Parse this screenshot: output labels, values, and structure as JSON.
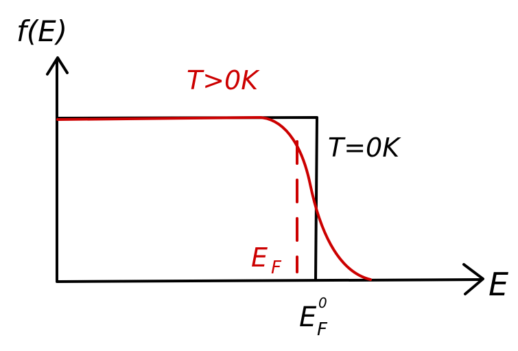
{
  "labels": {
    "y_axis": "f(E)",
    "x_axis": "E",
    "hot_curve": "T>0K",
    "zero_curve": "T=0K",
    "fermi_hot_main": "E",
    "fermi_hot_sub": "F",
    "fermi_zero_main": "E",
    "fermi_zero_sub": "F",
    "fermi_zero_sup": "0"
  },
  "colors": {
    "ink": "#000000",
    "red": "#cc0000",
    "background": "#ffffff"
  }
}
